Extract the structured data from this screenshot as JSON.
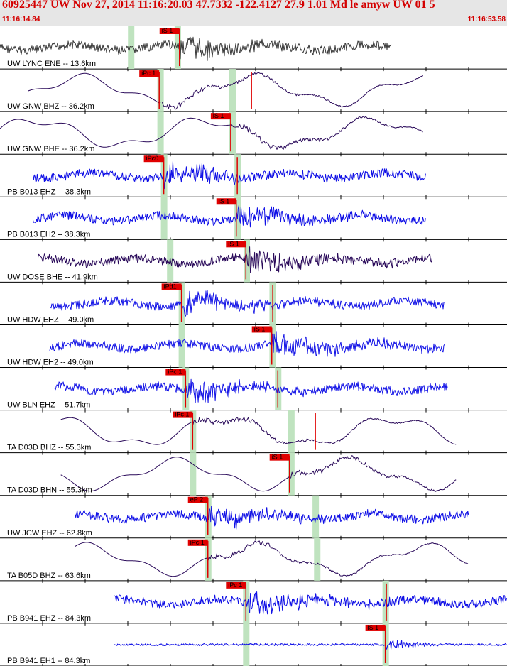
{
  "header": {
    "title": "60925447 UW Nov 27, 2014 11:16:20.03    47.7332 -122.4127 27.9 1.01 Md le amyw UW 01   5",
    "start_time": "11:16:14.84",
    "end_time": "11:16:53.58"
  },
  "colors": {
    "blue": "#1010e6",
    "purple": "#2a0a5a",
    "gray": "#383838",
    "red": "#e00000",
    "green": "#bfe3bf"
  },
  "traces": [
    {
      "label": "UW LYNC ENE -- 13.6km",
      "color": "gray",
      "pick": "iS 1",
      "style": "noise",
      "start": 0.0,
      "end": 0.772,
      "green": [
        0.258,
        0.35
      ],
      "picks": [
        0.354
      ]
    },
    {
      "label": "UW GNW BHZ -- 36.2km",
      "color": "purple",
      "pick": "iPc 1",
      "style": "wave",
      "start": 0.055,
      "end": 0.835,
      "green": [
        0.316,
        0.458
      ],
      "picks": [
        0.314,
        0.496
      ]
    },
    {
      "label": "UW GNW BHE -- 36.2km",
      "color": "purple",
      "pick": "iS 1",
      "style": "wave",
      "start": 0.0,
      "end": 0.835,
      "green": [
        0.316,
        0.458
      ],
      "picks": [
        0.455
      ]
    },
    {
      "label": "PB B013 EHZ -- 38.3km",
      "color": "blue",
      "pick": "iPc0",
      "style": "noise",
      "start": 0.065,
      "end": 0.84,
      "green": [
        0.323,
        0.468
      ],
      "picks": [
        0.323,
        0.468
      ]
    },
    {
      "label": "PB B013 EH2 -- 38.3km",
      "color": "blue",
      "pick": "iS 1",
      "style": "noise",
      "start": 0.065,
      "end": 0.84,
      "green": [
        0.323,
        0.468
      ],
      "picks": [
        0.466
      ]
    },
    {
      "label": "UW DOSE BHE -- 41.9km",
      "color": "purple",
      "pick": "iS 1",
      "style": "noise",
      "start": 0.075,
      "end": 0.853,
      "green": [
        0.335,
        0.486
      ],
      "picks": [
        0.485
      ]
    },
    {
      "label": "UW HDW EHZ -- 49.0km",
      "color": "blue",
      "pick": "iPd1",
      "style": "noise",
      "start": 0.098,
      "end": 0.877,
      "green": [
        0.358,
        0.537
      ],
      "picks": [
        0.358,
        0.538
      ]
    },
    {
      "label": "UW HDW EH2 -- 49.0km",
      "color": "blue",
      "pick": "iS 1",
      "style": "noise",
      "start": 0.098,
      "end": 0.877,
      "green": [
        0.358,
        0.537
      ],
      "picks": [
        0.536
      ]
    },
    {
      "label": "UW BLN EHZ -- 51.7km",
      "color": "blue",
      "pick": "iPc 1",
      "style": "noise",
      "start": 0.108,
      "end": 0.883,
      "green": [
        0.366,
        0.548
      ],
      "picks": [
        0.366,
        0.548
      ]
    },
    {
      "label": "TA D03D BHZ -- 55.3km",
      "color": "purple",
      "pick": "iPc 1",
      "style": "wave",
      "start": 0.12,
      "end": 0.9,
      "green": [
        0.38,
        0.574
      ],
      "picks": [
        0.38,
        0.622
      ]
    },
    {
      "label": "TA D03D BHN -- 55.3km",
      "color": "purple",
      "pick": "iS 1",
      "style": "wave",
      "start": 0.12,
      "end": 0.9,
      "green": [
        0.38,
        0.574
      ],
      "picks": [
        0.571
      ]
    },
    {
      "label": "UW JCW EHZ -- 62.8km",
      "color": "blue",
      "pick": "eP 2",
      "style": "noise",
      "start": 0.148,
      "end": 0.925,
      "green": [
        0.41,
        0.622
      ],
      "picks": [
        0.41
      ]
    },
    {
      "label": "TA B05D BHZ -- 63.6km",
      "color": "purple",
      "pick": "iPc 1",
      "style": "wave",
      "start": 0.148,
      "end": 0.925,
      "green": [
        0.41,
        0.625
      ],
      "picks": [
        0.41
      ]
    },
    {
      "label": "PB B941 EHZ -- 84.3km",
      "color": "blue",
      "pick": "iPc 1",
      "style": "noise",
      "start": 0.225,
      "end": 1.0,
      "green": [
        0.485,
        0.76
      ],
      "picks": [
        0.485,
        0.762
      ]
    },
    {
      "label": "PB B941 EH1 -- 84.3km",
      "color": "blue",
      "pick": "iS 1",
      "style": "quiet",
      "start": 0.225,
      "end": 1.0,
      "green": [
        0.485,
        0.76
      ],
      "picks": [
        0.76
      ]
    }
  ]
}
